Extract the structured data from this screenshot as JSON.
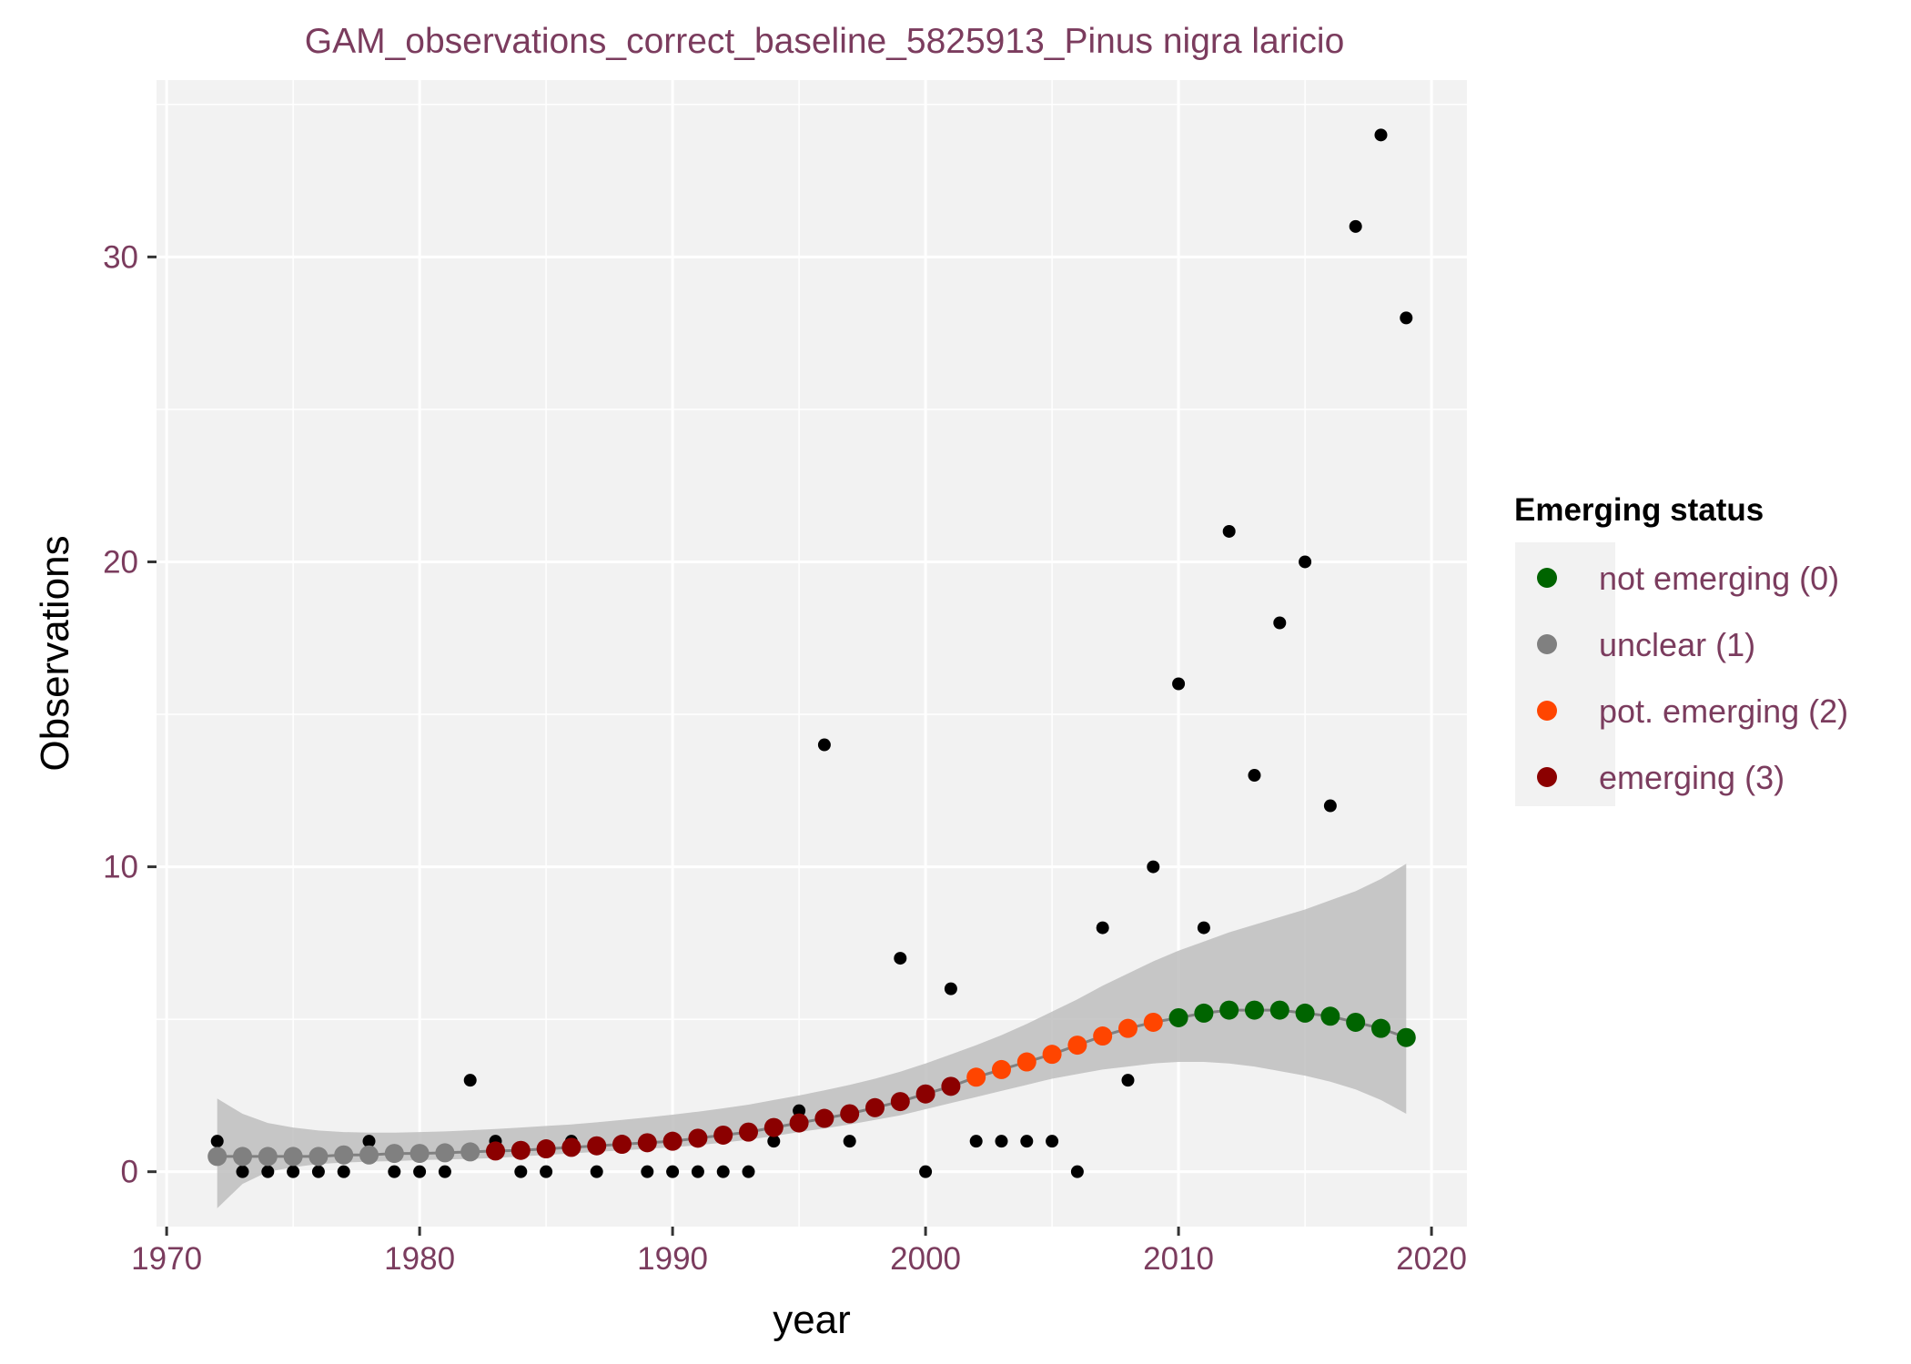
{
  "chart_data": {
    "type": "scatter",
    "title": "GAM_observations_correct_baseline_5825913_Pinus nigra laricio",
    "xlabel": "year",
    "ylabel": "Observations",
    "xlim": [
      1969.6,
      2021.4
    ],
    "ylim": [
      -1.8,
      35.8
    ],
    "x_ticks": [
      1970,
      1980,
      1990,
      2000,
      2010,
      2020
    ],
    "y_ticks": [
      0,
      10,
      20,
      30
    ],
    "grid": true,
    "legend_position": "right",
    "legend": {
      "title": "Emerging status",
      "entries": [
        {
          "label": "not emerging (0)",
          "color": "#006400"
        },
        {
          "label": "unclear (1)",
          "color": "#808080"
        },
        {
          "label": "pot. emerging (2)",
          "color": "#FF4500"
        },
        {
          "label": "emerging (3)",
          "color": "#8B0000"
        }
      ]
    },
    "observations": {
      "color": "#000000",
      "x": [
        1972,
        1973,
        1974,
        1975,
        1976,
        1977,
        1978,
        1979,
        1980,
        1981,
        1982,
        1983,
        1984,
        1985,
        1986,
        1987,
        1988,
        1989,
        1990,
        1991,
        1992,
        1993,
        1994,
        1995,
        1996,
        1997,
        1998,
        1999,
        2000,
        2001,
        2002,
        2003,
        2004,
        2005,
        2006,
        2007,
        2008,
        2009,
        2010,
        2011,
        2012,
        2013,
        2014,
        2015,
        2016,
        2017,
        2018,
        2019
      ],
      "y": [
        1,
        0,
        0,
        0,
        0,
        0,
        1,
        0,
        0,
        0,
        3,
        1,
        0,
        0,
        1,
        0,
        1,
        0,
        0,
        0,
        0,
        0,
        1,
        2,
        14,
        1,
        2,
        7,
        0,
        6,
        1,
        1,
        1,
        1,
        0,
        8,
        3,
        10,
        16,
        8,
        21,
        13,
        18,
        20,
        12,
        31,
        34,
        28
      ]
    },
    "gam_fit": {
      "x": [
        1972,
        1973,
        1974,
        1975,
        1976,
        1977,
        1978,
        1979,
        1980,
        1981,
        1982,
        1983,
        1984,
        1985,
        1986,
        1987,
        1988,
        1989,
        1990,
        1991,
        1992,
        1993,
        1994,
        1995,
        1996,
        1997,
        1998,
        1999,
        2000,
        2001,
        2002,
        2003,
        2004,
        2005,
        2006,
        2007,
        2008,
        2009,
        2010,
        2011,
        2012,
        2013,
        2014,
        2015,
        2016,
        2017,
        2018,
        2019
      ],
      "y": [
        0.5,
        0.5,
        0.5,
        0.5,
        0.5,
        0.55,
        0.55,
        0.6,
        0.6,
        0.62,
        0.65,
        0.68,
        0.7,
        0.75,
        0.8,
        0.85,
        0.9,
        0.95,
        1.0,
        1.1,
        1.2,
        1.3,
        1.45,
        1.6,
        1.75,
        1.9,
        2.1,
        2.3,
        2.55,
        2.8,
        3.1,
        3.35,
        3.6,
        3.85,
        4.15,
        4.45,
        4.7,
        4.9,
        5.05,
        5.2,
        5.3,
        5.3,
        5.3,
        5.2,
        5.1,
        4.9,
        4.7,
        4.4
      ],
      "lower": [
        -1.2,
        -0.4,
        0.0,
        0.15,
        0.25,
        0.3,
        0.33,
        0.35,
        0.38,
        0.4,
        0.42,
        0.45,
        0.5,
        0.55,
        0.6,
        0.65,
        0.7,
        0.75,
        0.8,
        0.87,
        0.95,
        1.05,
        1.17,
        1.3,
        1.42,
        1.55,
        1.7,
        1.85,
        2.05,
        2.25,
        2.45,
        2.65,
        2.85,
        3.05,
        3.2,
        3.35,
        3.45,
        3.55,
        3.6,
        3.6,
        3.55,
        3.45,
        3.3,
        3.15,
        2.95,
        2.7,
        2.35,
        1.9
      ],
      "upper": [
        2.4,
        1.9,
        1.6,
        1.45,
        1.35,
        1.3,
        1.28,
        1.28,
        1.3,
        1.32,
        1.36,
        1.4,
        1.45,
        1.5,
        1.55,
        1.62,
        1.7,
        1.78,
        1.87,
        1.97,
        2.08,
        2.2,
        2.35,
        2.5,
        2.67,
        2.85,
        3.05,
        3.28,
        3.55,
        3.85,
        4.15,
        4.48,
        4.85,
        5.25,
        5.65,
        6.1,
        6.5,
        6.9,
        7.25,
        7.55,
        7.85,
        8.1,
        8.35,
        8.6,
        8.9,
        9.2,
        9.6,
        10.1
      ],
      "status": [
        1,
        1,
        1,
        1,
        1,
        1,
        1,
        1,
        1,
        1,
        1,
        3,
        3,
        3,
        3,
        3,
        3,
        3,
        3,
        3,
        3,
        3,
        3,
        3,
        3,
        3,
        3,
        3,
        3,
        3,
        2,
        2,
        2,
        2,
        2,
        2,
        2,
        2,
        0,
        0,
        0,
        0,
        0,
        0,
        0,
        0,
        0,
        0
      ]
    }
  }
}
